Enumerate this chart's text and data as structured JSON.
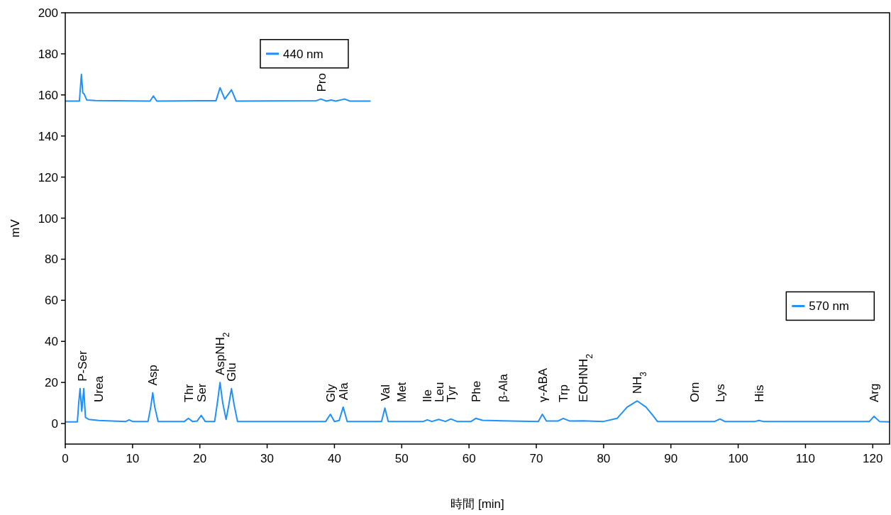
{
  "chart_data": {
    "type": "line",
    "xlabel": "時間 [min]",
    "ylabel": "mV",
    "xlim": [
      0,
      122.5
    ],
    "ylim": [
      -10,
      200
    ],
    "xticks": [
      0,
      10,
      20,
      30,
      40,
      50,
      60,
      70,
      80,
      90,
      100,
      110,
      120
    ],
    "yticks": [
      0,
      20,
      40,
      60,
      80,
      100,
      120,
      140,
      160,
      180,
      200
    ],
    "grid": false,
    "legend": "top",
    "marker": "none",
    "line_style": "solid",
    "series": [
      {
        "name": "440 nm",
        "color": "#1e90ff",
        "x": [
          0,
          2.1,
          2.4,
          2.6,
          2.8,
          3.2,
          4.5,
          12.6,
          13.1,
          13.6,
          20,
          22.4,
          23.0,
          23.7,
          24.7,
          25.4,
          37.3,
          38,
          38.8,
          39.5,
          40.2,
          41.5,
          42.3,
          45.3
        ],
        "values": [
          157,
          157,
          170,
          161,
          160.5,
          157.5,
          157.3,
          157,
          159.5,
          157,
          157.2,
          157.2,
          163.5,
          158,
          162.5,
          157,
          157.2,
          158,
          157,
          157.5,
          157,
          158,
          157,
          157
        ]
      },
      {
        "name": "570 nm",
        "color": "#1e90ff",
        "x": [
          0,
          1.8,
          2.0,
          2.2,
          2.45,
          2.75,
          3.0,
          3.5,
          5,
          9,
          9.5,
          10,
          12.3,
          12.7,
          13.0,
          13.3,
          13.8,
          17.7,
          18.3,
          18.9,
          19.6,
          20.2,
          20.8,
          22.2,
          22.6,
          23.0,
          23.4,
          23.9,
          24.3,
          24.7,
          25.1,
          25.6,
          38.7,
          39.4,
          40.0,
          40.7,
          41.3,
          41.9,
          47.0,
          47.5,
          48.0,
          53.2,
          53.8,
          54.5,
          55.5,
          56.5,
          57.3,
          58.2,
          60.3,
          61.0,
          62,
          65,
          70.3,
          70.9,
          71.5,
          73.2,
          74,
          75,
          77,
          80,
          82,
          83.5,
          85,
          86.3,
          87.3,
          88,
          96.5,
          97.3,
          98,
          102.5,
          103.1,
          103.7,
          119.5,
          120.2,
          121,
          122.5
        ],
        "values": [
          0.8,
          0.8,
          10,
          17,
          6,
          17,
          3,
          2,
          1.5,
          1,
          1.8,
          1,
          1,
          8,
          15,
          8,
          1,
          1,
          2.5,
          1,
          1.2,
          4,
          1,
          1,
          10,
          20,
          10,
          2,
          9,
          17,
          9,
          1,
          1,
          4.5,
          1,
          1.5,
          8,
          1,
          1,
          7.5,
          1,
          1,
          1.8,
          1,
          2,
          1,
          2.2,
          1,
          1,
          2.5,
          1.6,
          1.3,
          1,
          4.5,
          1.2,
          1.2,
          2.5,
          1.2,
          1.3,
          1,
          2.5,
          8,
          11,
          8,
          4,
          1,
          1,
          2.2,
          1,
          1,
          1.5,
          1,
          1,
          3.5,
          1,
          0.8
        ]
      }
    ],
    "annotations": [
      {
        "text": "P-Ser",
        "x": 2.5,
        "y": 17
      },
      {
        "text": "Urea",
        "x": 5,
        "y": 1.5
      },
      {
        "text": "Asp",
        "x": 13,
        "y": 15
      },
      {
        "text": "Thr",
        "x": 18.3,
        "y": 2.5
      },
      {
        "text": "Ser",
        "x": 20.2,
        "y": 4
      },
      {
        "text": "AspNH$_{2}$",
        "x": 23,
        "y": 20
      },
      {
        "text": "Glu",
        "x": 24.7,
        "y": 17
      },
      {
        "text": "Gly",
        "x": 39.4,
        "y": 4.5
      },
      {
        "text": "Ala",
        "x": 41.3,
        "y": 8
      },
      {
        "text": "Val",
        "x": 47.5,
        "y": 7.5
      },
      {
        "text": "Met",
        "x": 50,
        "y": 1
      },
      {
        "text": "Ile",
        "x": 53.8,
        "y": 1.8
      },
      {
        "text": "Leu",
        "x": 55.5,
        "y": 2
      },
      {
        "text": "Tyr",
        "x": 57.3,
        "y": 2.2
      },
      {
        "text": "Phe",
        "x": 61,
        "y": 2.5
      },
      {
        "text": "β-Ala",
        "x": 65,
        "y": 1.3
      },
      {
        "text": "γ-ABA",
        "x": 70.9,
        "y": 4.5
      },
      {
        "text": "Trp",
        "x": 74,
        "y": 2.5
      },
      {
        "text": "EOHNH$_{2}$",
        "x": 77,
        "y": 1.3
      },
      {
        "text": "NH$_{3}$",
        "x": 85,
        "y": 11
      },
      {
        "text": "Orn",
        "x": 93.5,
        "y": 1
      },
      {
        "text": "Lys",
        "x": 97.3,
        "y": 2.2
      },
      {
        "text": "His",
        "x": 103.1,
        "y": 1.5
      },
      {
        "text": "Arg",
        "x": 120.2,
        "y": 3.5
      },
      {
        "text": "Pro",
        "x": 38,
        "y": 158
      }
    ]
  }
}
